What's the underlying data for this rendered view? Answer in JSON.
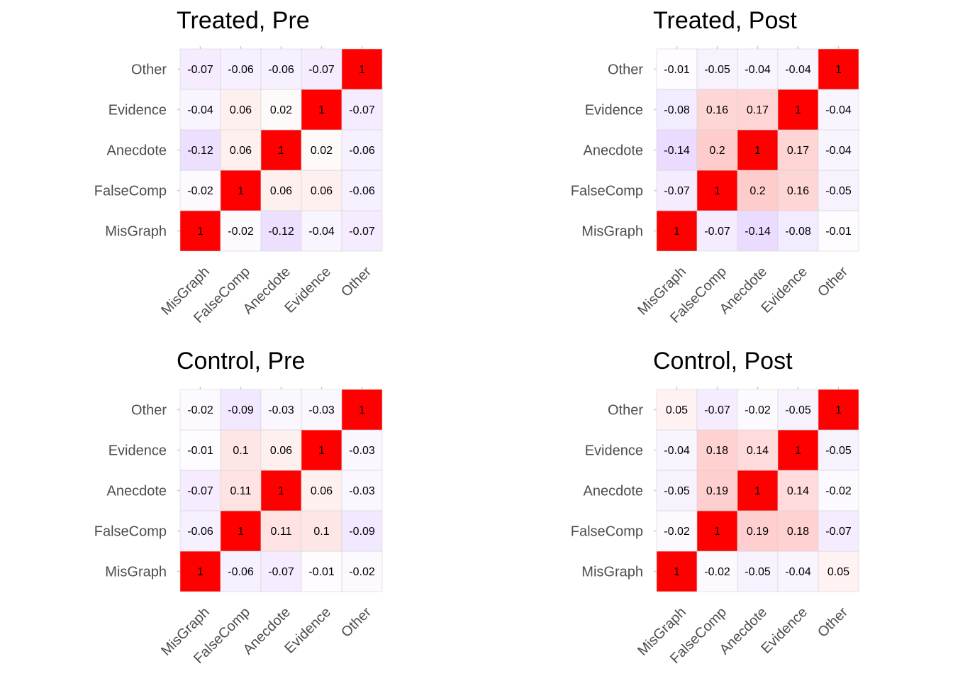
{
  "chart_data": [
    {
      "type": "heatmap",
      "title": "Treated, Pre",
      "categories": [
        "MisGraph",
        "FalseComp",
        "Anecdote",
        "Evidence",
        "Other"
      ],
      "matrix": [
        [
          1,
          -0.02,
          -0.12,
          -0.04,
          -0.07
        ],
        [
          -0.02,
          1,
          0.06,
          0.06,
          -0.06
        ],
        [
          -0.12,
          0.06,
          1,
          0.02,
          -0.06
        ],
        [
          -0.04,
          0.06,
          0.02,
          1,
          -0.07
        ],
        [
          -0.07,
          -0.06,
          -0.06,
          -0.07,
          1
        ]
      ]
    },
    {
      "type": "heatmap",
      "title": "Treated, Post",
      "categories": [
        "MisGraph",
        "FalseComp",
        "Anecdote",
        "Evidence",
        "Other"
      ],
      "matrix": [
        [
          1,
          -0.07,
          -0.14,
          -0.08,
          -0.01
        ],
        [
          -0.07,
          1,
          0.2,
          0.16,
          -0.05
        ],
        [
          -0.14,
          0.2,
          1,
          0.17,
          -0.04
        ],
        [
          -0.08,
          0.16,
          0.17,
          1,
          -0.04
        ],
        [
          -0.01,
          -0.05,
          -0.04,
          -0.04,
          1
        ]
      ]
    },
    {
      "type": "heatmap",
      "title": "Control, Pre",
      "categories": [
        "MisGraph",
        "FalseComp",
        "Anecdote",
        "Evidence",
        "Other"
      ],
      "matrix": [
        [
          1,
          -0.06,
          -0.07,
          -0.01,
          -0.02
        ],
        [
          -0.06,
          1,
          0.11,
          0.1,
          -0.09
        ],
        [
          -0.07,
          0.11,
          1,
          0.06,
          -0.03
        ],
        [
          -0.01,
          0.1,
          0.06,
          1,
          -0.03
        ],
        [
          -0.02,
          -0.09,
          -0.03,
          -0.03,
          1
        ]
      ]
    },
    {
      "type": "heatmap",
      "title": "Control, Post",
      "categories": [
        "MisGraph",
        "FalseComp",
        "Anecdote",
        "Evidence",
        "Other"
      ],
      "matrix": [
        [
          1,
          -0.02,
          -0.05,
          -0.04,
          0.05
        ],
        [
          -0.02,
          1,
          0.19,
          0.18,
          -0.07
        ],
        [
          -0.05,
          0.19,
          1,
          0.14,
          -0.02
        ],
        [
          -0.04,
          0.18,
          0.14,
          1,
          -0.05
        ],
        [
          0.05,
          -0.07,
          -0.02,
          -0.05,
          1
        ]
      ]
    }
  ],
  "colors": {
    "high": "#ff0000",
    "mid": "#ffffff",
    "low": "#6a00ff",
    "cell_border": "#d3d3d3",
    "tick_label": "#4d4d4d"
  }
}
